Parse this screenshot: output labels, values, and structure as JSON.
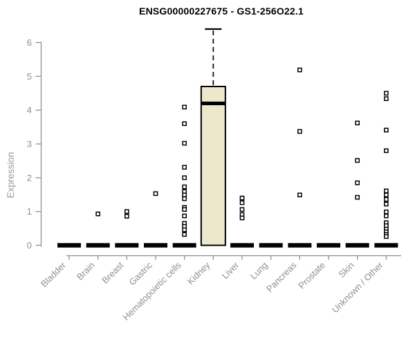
{
  "chart_data": {
    "type": "boxplot",
    "title": "ENSG00000227675 - GS1-256O22.1",
    "ylabel": "Expression",
    "xlabel": "",
    "ylim": [
      0,
      6.4
    ],
    "yticks": [
      0,
      1,
      2,
      3,
      4,
      5,
      6
    ],
    "grid": false,
    "legend_position": "none",
    "categories": [
      "Bladder",
      "Brain",
      "Breast",
      "Gastric",
      "Hematopoietic cells",
      "Kidney",
      "Liver",
      "Lung",
      "Pancreas",
      "Prostate",
      "Skin",
      "Unknown / Other"
    ],
    "boxes": [
      {
        "category": "Bladder",
        "q1": 0,
        "median": 0,
        "q3": 0,
        "whisker_low": 0,
        "whisker_high": 0,
        "outliers": []
      },
      {
        "category": "Brain",
        "q1": 0,
        "median": 0,
        "q3": 0,
        "whisker_low": 0,
        "whisker_high": 0,
        "outliers": [
          0.93
        ]
      },
      {
        "category": "Breast",
        "q1": 0,
        "median": 0,
        "q3": 0,
        "whisker_low": 0,
        "whisker_high": 0,
        "outliers": [
          1.0,
          0.86
        ]
      },
      {
        "category": "Gastric",
        "q1": 0,
        "median": 0,
        "q3": 0,
        "whisker_low": 0,
        "whisker_high": 0,
        "outliers": [
          1.53
        ]
      },
      {
        "category": "Hematopoietic cells",
        "q1": 0,
        "median": 0,
        "q3": 0,
        "whisker_low": 0,
        "whisker_high": 0,
        "outliers": [
          4.09,
          3.6,
          3.02,
          2.31,
          2.0,
          1.73,
          1.59,
          1.49,
          1.38,
          1.12,
          1.06,
          0.87,
          0.65,
          0.56,
          0.46,
          0.32
        ]
      },
      {
        "category": "Kidney",
        "q1": 0,
        "median": 4.2,
        "q3": 4.7,
        "whisker_low": 0,
        "whisker_high": 6.4,
        "outliers": []
      },
      {
        "category": "Liver",
        "q1": 0,
        "median": 0,
        "q3": 0,
        "whisker_low": 0,
        "whisker_high": 0,
        "outliers": [
          1.4,
          1.26,
          1.06,
          0.91,
          0.81
        ]
      },
      {
        "category": "Lung",
        "q1": 0,
        "median": 0,
        "q3": 0,
        "whisker_low": 0,
        "whisker_high": 0,
        "outliers": []
      },
      {
        "category": "Pancreas",
        "q1": 0,
        "median": 0,
        "q3": 0,
        "whisker_low": 0,
        "whisker_high": 0,
        "outliers": [
          5.19,
          3.37,
          1.49
        ]
      },
      {
        "category": "Prostate",
        "q1": 0,
        "median": 0,
        "q3": 0,
        "whisker_low": 0,
        "whisker_high": 0,
        "outliers": []
      },
      {
        "category": "Skin",
        "q1": 0,
        "median": 0,
        "q3": 0,
        "whisker_low": 0,
        "whisker_high": 0,
        "outliers": [
          3.62,
          2.51,
          1.85,
          1.42
        ]
      },
      {
        "category": "Unknown / Other",
        "q1": 0,
        "median": 0,
        "q3": 0,
        "whisker_low": 0,
        "whisker_high": 0,
        "outliers": [
          4.5,
          4.34,
          3.41,
          2.8,
          1.61,
          1.49,
          1.36,
          1.22,
          0.99,
          0.87,
          0.67,
          0.58,
          0.48,
          0.4,
          0.32,
          0.26
        ]
      }
    ],
    "colors": {
      "box_fill": "#ece7cd",
      "box_stroke": "#000000",
      "median": "#000000",
      "outlier_stroke": "#000000",
      "outlier_fill": "#ffffff",
      "axis": "#8f8f8f",
      "tick_label": "#8f8f8f",
      "title": "#000000"
    }
  }
}
